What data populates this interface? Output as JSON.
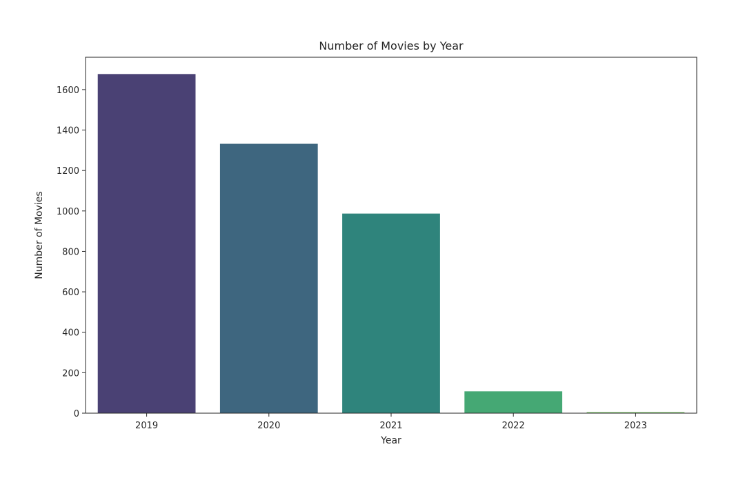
{
  "chart_data": {
    "type": "bar",
    "title": "Number of Movies by Year",
    "xlabel": "Year",
    "ylabel": "Number of Movies",
    "categories": [
      "2019",
      "2020",
      "2021",
      "2022",
      "2023"
    ],
    "values": [
      1677,
      1332,
      987,
      108,
      5
    ],
    "colors": [
      "#4a4174",
      "#3e667f",
      "#2f847c",
      "#45a874",
      "#74c060"
    ],
    "ylim": [
      0,
      1760
    ],
    "yticks": [
      0,
      200,
      400,
      600,
      800,
      1000,
      1200,
      1400,
      1600
    ],
    "grid": false,
    "legend": "none"
  }
}
